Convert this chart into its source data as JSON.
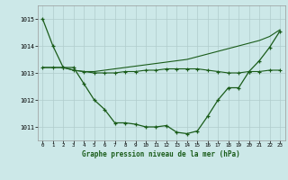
{
  "title": "Graphe pression niveau de la mer (hPa)",
  "bg_color": "#cce8e8",
  "grid_color": "#b0cccc",
  "line_color": "#1a5c1a",
  "x_ticks": [
    0,
    1,
    2,
    3,
    4,
    5,
    6,
    7,
    8,
    9,
    10,
    11,
    12,
    13,
    14,
    15,
    16,
    17,
    18,
    19,
    20,
    21,
    22,
    23
  ],
  "ylim": [
    1010.5,
    1015.5
  ],
  "yticks": [
    1011,
    1012,
    1013,
    1014,
    1015
  ],
  "series1": [
    1015.0,
    1014.0,
    1013.2,
    1013.2,
    1012.6,
    1012.0,
    1011.65,
    1011.15,
    1011.15,
    1011.1,
    1011.0,
    1011.0,
    1011.05,
    1010.8,
    1010.75,
    1010.85,
    1011.4,
    1012.0,
    1012.45,
    1012.45,
    1013.05,
    1013.45,
    1013.95,
    1014.55
  ],
  "series2": [
    1013.2,
    1013.2,
    1013.2,
    1013.1,
    1013.05,
    1013.0,
    1013.0,
    1013.0,
    1013.05,
    1013.05,
    1013.1,
    1013.1,
    1013.15,
    1013.15,
    1013.15,
    1013.15,
    1013.1,
    1013.05,
    1013.0,
    1013.0,
    1013.05,
    1013.05,
    1013.1,
    1013.1
  ],
  "series3": [
    1013.2,
    1013.2,
    1013.2,
    1013.1,
    1013.05,
    1013.05,
    1013.1,
    1013.15,
    1013.2,
    1013.25,
    1013.3,
    1013.35,
    1013.4,
    1013.45,
    1013.5,
    1013.6,
    1013.7,
    1013.8,
    1013.9,
    1014.0,
    1014.1,
    1014.2,
    1014.35,
    1014.6
  ]
}
